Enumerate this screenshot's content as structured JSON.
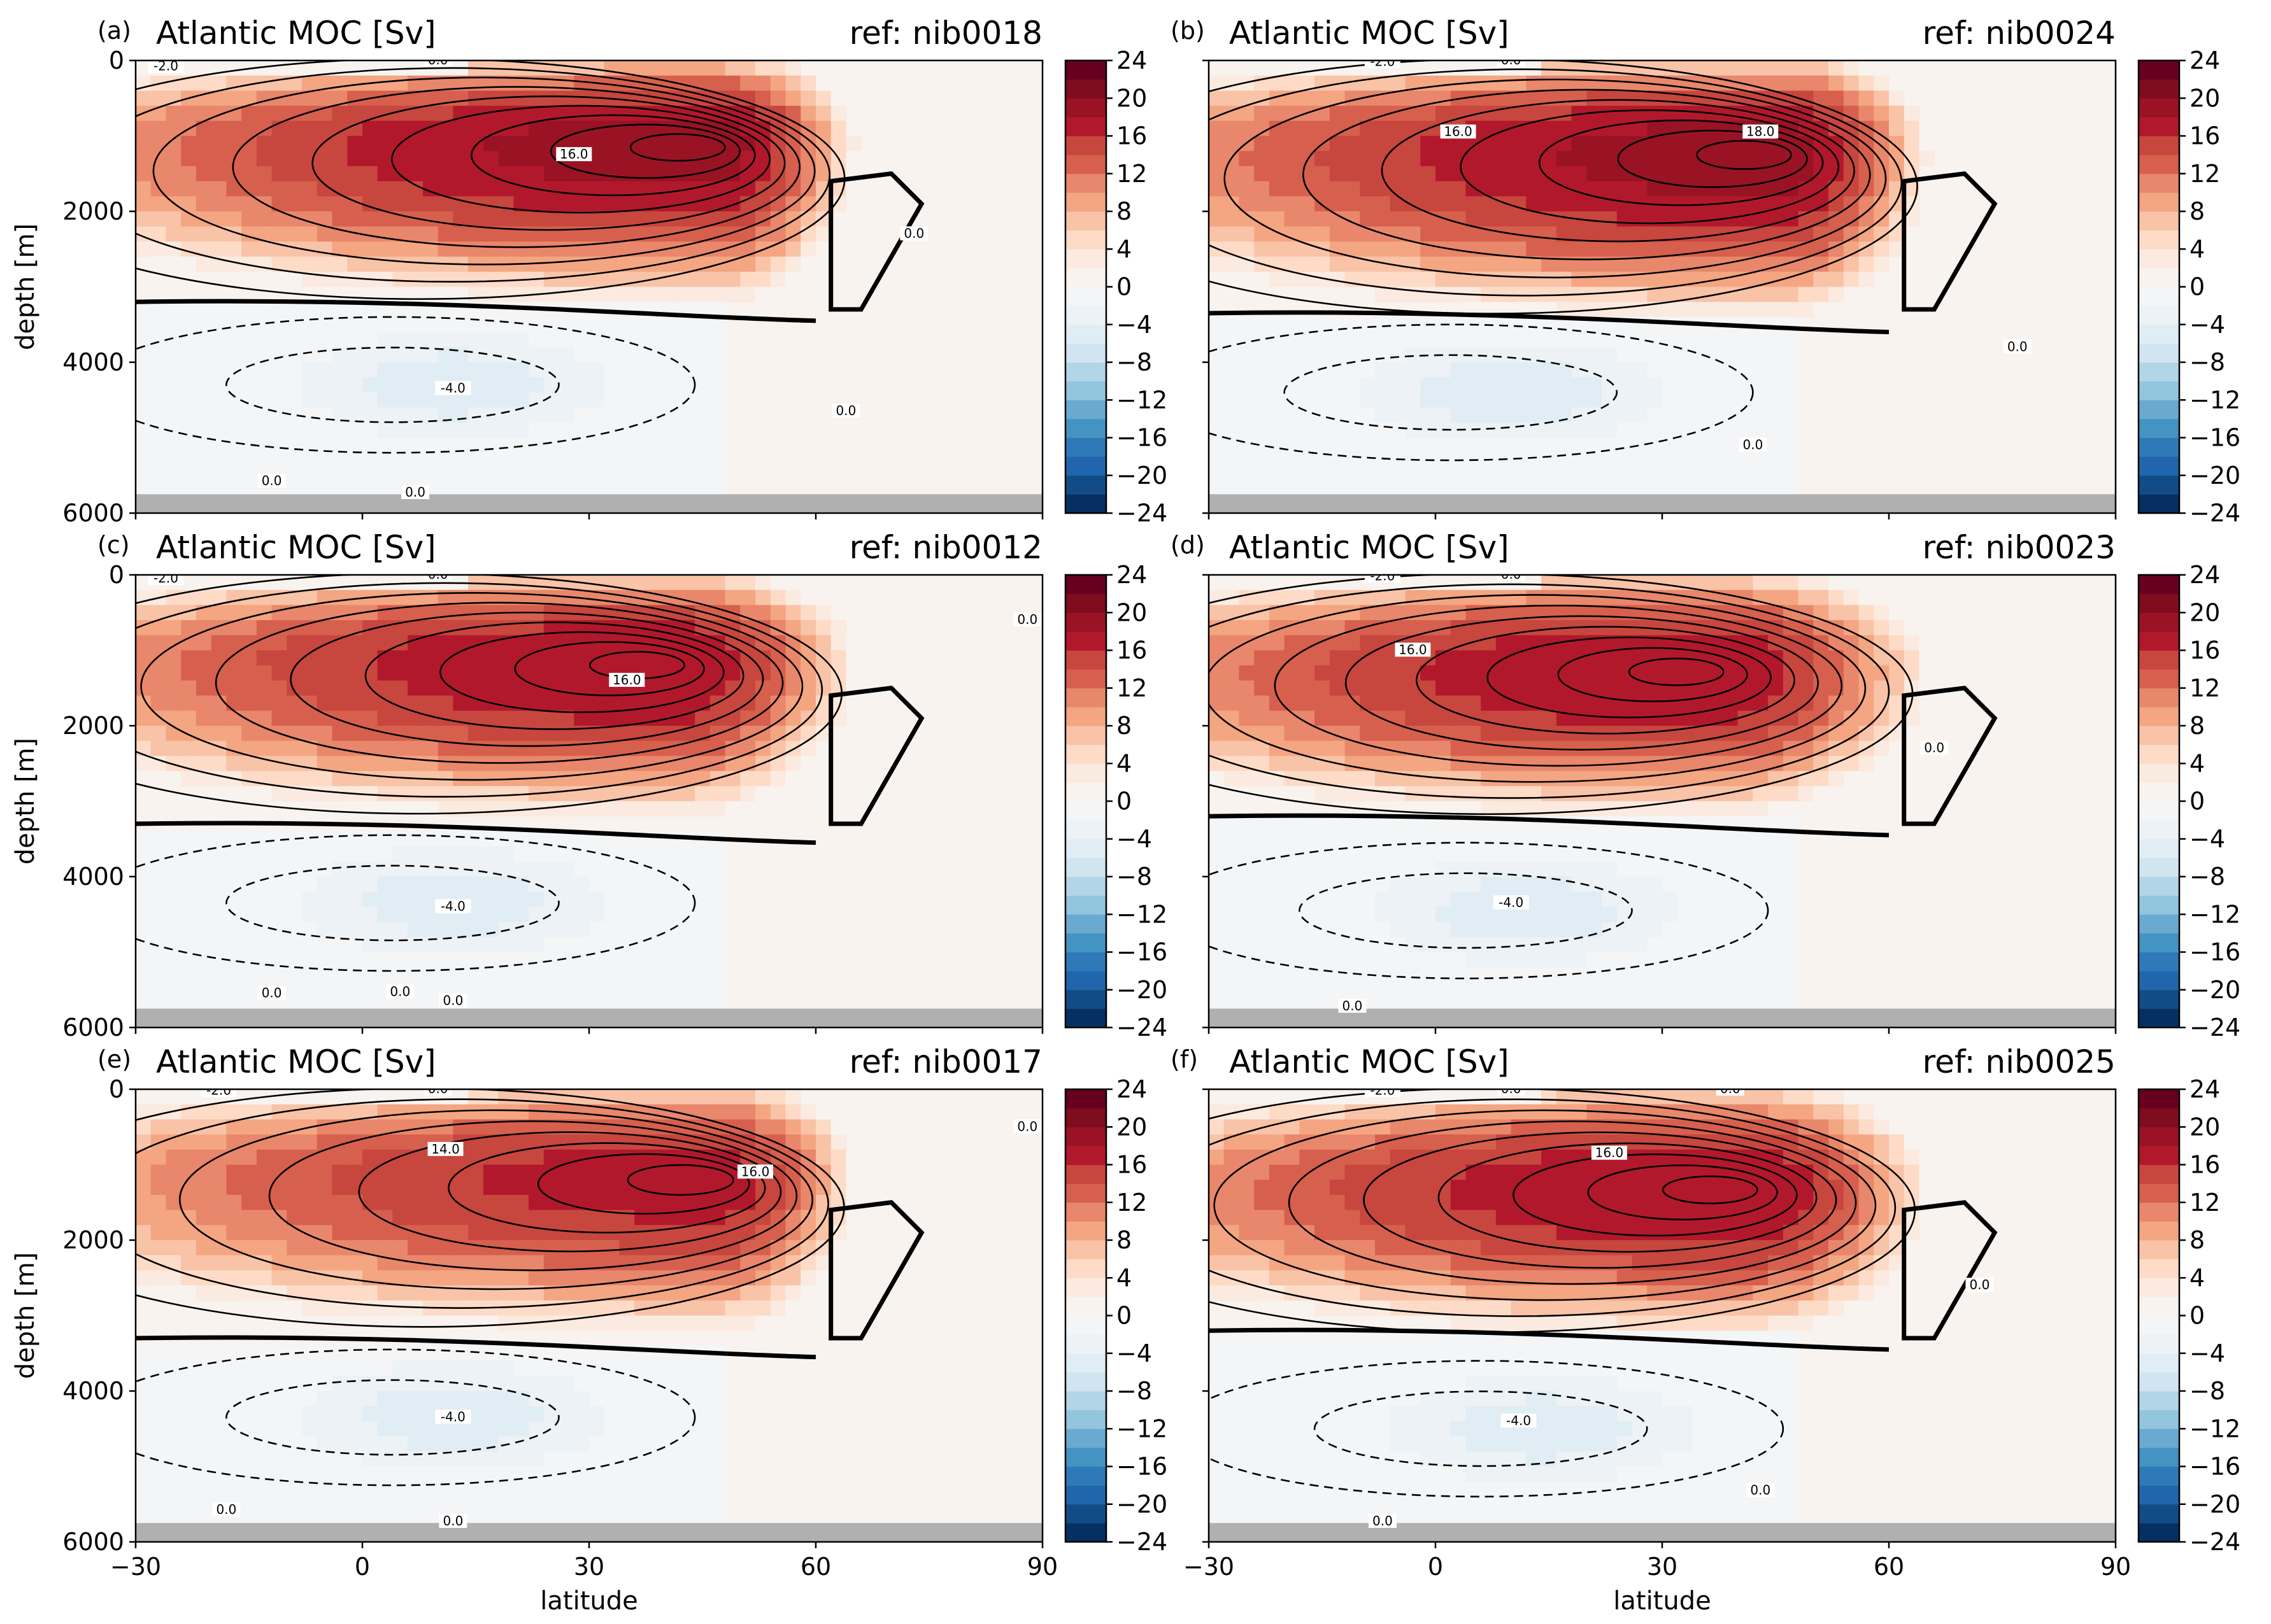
{
  "figure": {
    "panels": [
      {
        "letter": "(a)",
        "title": "Atlantic MOC [Sv]",
        "ref": "ref: nib0018"
      },
      {
        "letter": "(b)",
        "title": "Atlantic MOC [Sv]",
        "ref": "ref: nib0024"
      },
      {
        "letter": "(c)",
        "title": "Atlantic MOC [Sv]",
        "ref": "ref: nib0012"
      },
      {
        "letter": "(d)",
        "title": "Atlantic MOC [Sv]",
        "ref": "ref: nib0023"
      },
      {
        "letter": "(e)",
        "title": "Atlantic MOC [Sv]",
        "ref": "ref: nib0017"
      },
      {
        "letter": "(f)",
        "title": "Atlantic MOC [Sv]",
        "ref": "ref: nib0025"
      }
    ],
    "ylabel": "depth [m]",
    "xlabel": "latitude",
    "colorbar_ticks": [
      "24",
      "20",
      "16",
      "12",
      "8",
      "4",
      "0",
      "−4",
      "−8",
      "−12",
      "−16",
      "−20",
      "−24"
    ],
    "x_ticks": [
      "−30",
      "0",
      "30",
      "60",
      "90"
    ],
    "y_ticks": [
      "0",
      "2000",
      "4000",
      "6000"
    ]
  },
  "chart_data": [
    {
      "type": "heatmap",
      "panel": "(a)",
      "title": "Atlantic MOC [Sv]",
      "ref": "ref: nib0018",
      "xlabel": "latitude",
      "ylabel": "depth [m]",
      "xlim": [
        -30,
        90
      ],
      "ylim": [
        6000,
        0
      ],
      "clim": [
        -24,
        24
      ],
      "colormap": "RdBu_r",
      "overturning_max": {
        "lat": 46,
        "depth": 1100,
        "value": 19
      },
      "overturning_extent": {
        "lat_min": -30,
        "lat_max": 65,
        "depth_min": 0,
        "depth_max": 3300
      },
      "abyssal_min": {
        "lat": 12,
        "depth": 4300,
        "value": -5
      },
      "zero_line_depth": 3200,
      "contour_labels": [
        {
          "text": "-2.0",
          "lat": -26,
          "depth": 80
        },
        {
          "text": "0.0",
          "lat": 10,
          "depth": 0
        },
        {
          "text": "16.0",
          "lat": 28,
          "depth": 1250
        },
        {
          "text": "0.0",
          "lat": 73,
          "depth": 2300
        },
        {
          "text": "-4.0",
          "lat": 12,
          "depth": 4350
        },
        {
          "text": "0.0",
          "lat": 64,
          "depth": 4650
        },
        {
          "text": "0.0",
          "lat": -12,
          "depth": 5580
        },
        {
          "text": "0.0",
          "lat": 7,
          "depth": 5730
        }
      ]
    },
    {
      "type": "heatmap",
      "panel": "(b)",
      "title": "Atlantic MOC [Sv]",
      "ref": "ref: nib0024",
      "xlabel": "latitude",
      "ylabel": "depth [m]",
      "xlim": [
        -30,
        90
      ],
      "ylim": [
        6000,
        0
      ],
      "clim": [
        -24,
        24
      ],
      "colormap": "RdBu_r",
      "overturning_max": {
        "lat": 45,
        "depth": 1200,
        "value": 19
      },
      "overturning_extent": {
        "lat_min": -30,
        "lat_max": 65,
        "depth_min": 0,
        "depth_max": 3500
      },
      "abyssal_min": {
        "lat": 10,
        "depth": 4400,
        "value": -5
      },
      "zero_line_depth": 3350,
      "contour_labels": [
        {
          "text": "-2.0",
          "lat": -7,
          "depth": 20
        },
        {
          "text": "0.0",
          "lat": 10,
          "depth": 0
        },
        {
          "text": "16.0",
          "lat": 3,
          "depth": 950
        },
        {
          "text": "18.0",
          "lat": 43,
          "depth": 950
        },
        {
          "text": "0.0",
          "lat": 77,
          "depth": 3800
        },
        {
          "text": "0.0",
          "lat": 42,
          "depth": 5100
        }
      ]
    },
    {
      "type": "heatmap",
      "panel": "(c)",
      "title": "Atlantic MOC [Sv]",
      "ref": "ref: nib0012",
      "xlabel": "latitude",
      "ylabel": "depth [m]",
      "xlim": [
        -30,
        90
      ],
      "ylim": [
        6000,
        0
      ],
      "clim": [
        -24,
        24
      ],
      "colormap": "RdBu_r",
      "overturning_max": {
        "lat": 40,
        "depth": 1150,
        "value": 18
      },
      "overturning_extent": {
        "lat_min": -30,
        "lat_max": 65,
        "depth_min": 0,
        "depth_max": 3300
      },
      "abyssal_min": {
        "lat": 12,
        "depth": 4350,
        "value": -5
      },
      "zero_line_depth": 3300,
      "contour_labels": [
        {
          "text": "-2.0",
          "lat": -26,
          "depth": 50
        },
        {
          "text": "0.0",
          "lat": 10,
          "depth": 0
        },
        {
          "text": "0.0",
          "lat": 88,
          "depth": 600
        },
        {
          "text": "16.0",
          "lat": 35,
          "depth": 1400
        },
        {
          "text": "-4.0",
          "lat": 12,
          "depth": 4400
        },
        {
          "text": "0.0",
          "lat": -12,
          "depth": 5550
        },
        {
          "text": "0.0",
          "lat": 5,
          "depth": 5530
        },
        {
          "text": "0.0",
          "lat": 12,
          "depth": 5650
        }
      ]
    },
    {
      "type": "heatmap",
      "panel": "(d)",
      "title": "Atlantic MOC [Sv]",
      "ref": "ref: nib0023",
      "xlabel": "latitude",
      "ylabel": "depth [m]",
      "xlim": [
        -30,
        90
      ],
      "ylim": [
        6000,
        0
      ],
      "clim": [
        -24,
        24
      ],
      "colormap": "RdBu_r",
      "overturning_max": {
        "lat": 35,
        "depth": 1250,
        "value": 18
      },
      "overturning_extent": {
        "lat_min": -30,
        "lat_max": 65,
        "depth_min": 0,
        "depth_max": 3300
      },
      "abyssal_min": {
        "lat": 12,
        "depth": 4450,
        "value": -5
      },
      "zero_line_depth": 3200,
      "contour_labels": [
        {
          "text": "-2.0",
          "lat": -7,
          "depth": 20
        },
        {
          "text": "0.0",
          "lat": 10,
          "depth": 0
        },
        {
          "text": "16.0",
          "lat": -3,
          "depth": 1000
        },
        {
          "text": "0.0",
          "lat": 66,
          "depth": 2300
        },
        {
          "text": "-4.0",
          "lat": 10,
          "depth": 4350
        },
        {
          "text": "0.0",
          "lat": -11,
          "depth": 5720
        }
      ]
    },
    {
      "type": "heatmap",
      "panel": "(e)",
      "title": "Atlantic MOC [Sv]",
      "ref": "ref: nib0017",
      "xlabel": "latitude",
      "ylabel": "depth [m]",
      "xlim": [
        -30,
        90
      ],
      "ylim": [
        6000,
        0
      ],
      "clim": [
        -24,
        24
      ],
      "colormap": "RdBu_r",
      "overturning_max": {
        "lat": 47,
        "depth": 1150,
        "value": 17
      },
      "overturning_extent": {
        "lat_min": -30,
        "lat_max": 65,
        "depth_min": 0,
        "depth_max": 3300
      },
      "abyssal_min": {
        "lat": 12,
        "depth": 4350,
        "value": -5
      },
      "zero_line_depth": 3300,
      "contour_labels": [
        {
          "text": "-2.0",
          "lat": -19,
          "depth": 20
        },
        {
          "text": "0.0",
          "lat": 10,
          "depth": 0
        },
        {
          "text": "14.0",
          "lat": 11,
          "depth": 800
        },
        {
          "text": "16.0",
          "lat": 52,
          "depth": 1100
        },
        {
          "text": "0.0",
          "lat": 88,
          "depth": 500
        },
        {
          "text": "-4.0",
          "lat": 12,
          "depth": 4350
        },
        {
          "text": "0.0",
          "lat": -18,
          "depth": 5580
        },
        {
          "text": "0.0",
          "lat": 12,
          "depth": 5730
        }
      ]
    },
    {
      "type": "heatmap",
      "panel": "(f)",
      "title": "Atlantic MOC [Sv]",
      "ref": "ref: nib0025",
      "xlabel": "latitude",
      "ylabel": "depth [m]",
      "xlim": [
        -30,
        90
      ],
      "ylim": [
        6000,
        0
      ],
      "clim": [
        -24,
        24
      ],
      "colormap": "RdBu_r",
      "overturning_max": {
        "lat": 40,
        "depth": 1300,
        "value": 18
      },
      "overturning_extent": {
        "lat_min": -30,
        "lat_max": 65,
        "depth_min": 0,
        "depth_max": 3350
      },
      "abyssal_min": {
        "lat": 14,
        "depth": 4500,
        "value": -5
      },
      "zero_line_depth": 3200,
      "contour_labels": [
        {
          "text": "-2.0",
          "lat": -7,
          "depth": 20
        },
        {
          "text": "0.0",
          "lat": 10,
          "depth": 0
        },
        {
          "text": "0.0",
          "lat": 39,
          "depth": 0
        },
        {
          "text": "16.0",
          "lat": 23,
          "depth": 850
        },
        {
          "text": "0.0",
          "lat": 72,
          "depth": 2600
        },
        {
          "text": "-4.0",
          "lat": 11,
          "depth": 4400
        },
        {
          "text": "0.0",
          "lat": 43,
          "depth": 5320
        },
        {
          "text": "0.0",
          "lat": -7,
          "depth": 5730
        }
      ]
    }
  ]
}
